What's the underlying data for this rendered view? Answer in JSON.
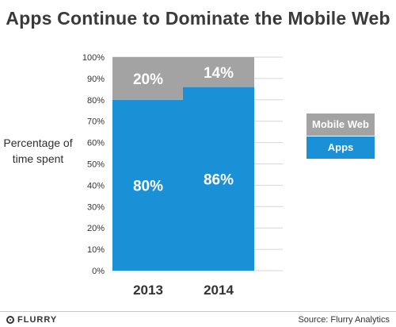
{
  "chart_data": {
    "type": "bar",
    "stacked": true,
    "title": "Apps Continue to Dominate the Mobile Web",
    "ylabel": "Percentage of time spent",
    "xlabel": "",
    "categories": [
      "2013",
      "2014"
    ],
    "series": [
      {
        "name": "Apps",
        "values": [
          80,
          86
        ],
        "color": "#1a90d6",
        "labels": [
          "80%",
          "86%"
        ]
      },
      {
        "name": "Mobile Web",
        "values": [
          20,
          14
        ],
        "color": "#a3a3a3",
        "labels": [
          "20%",
          "14%"
        ]
      }
    ],
    "ylim": [
      0,
      100
    ],
    "yticks": [
      "0%",
      "10%",
      "20%",
      "30%",
      "40%",
      "50%",
      "60%",
      "70%",
      "80%",
      "90%",
      "100%"
    ],
    "grid": true,
    "legend_position": "right"
  },
  "footer": {
    "logo_text": "FLURRY",
    "source": "Source: Flurry Analytics"
  }
}
